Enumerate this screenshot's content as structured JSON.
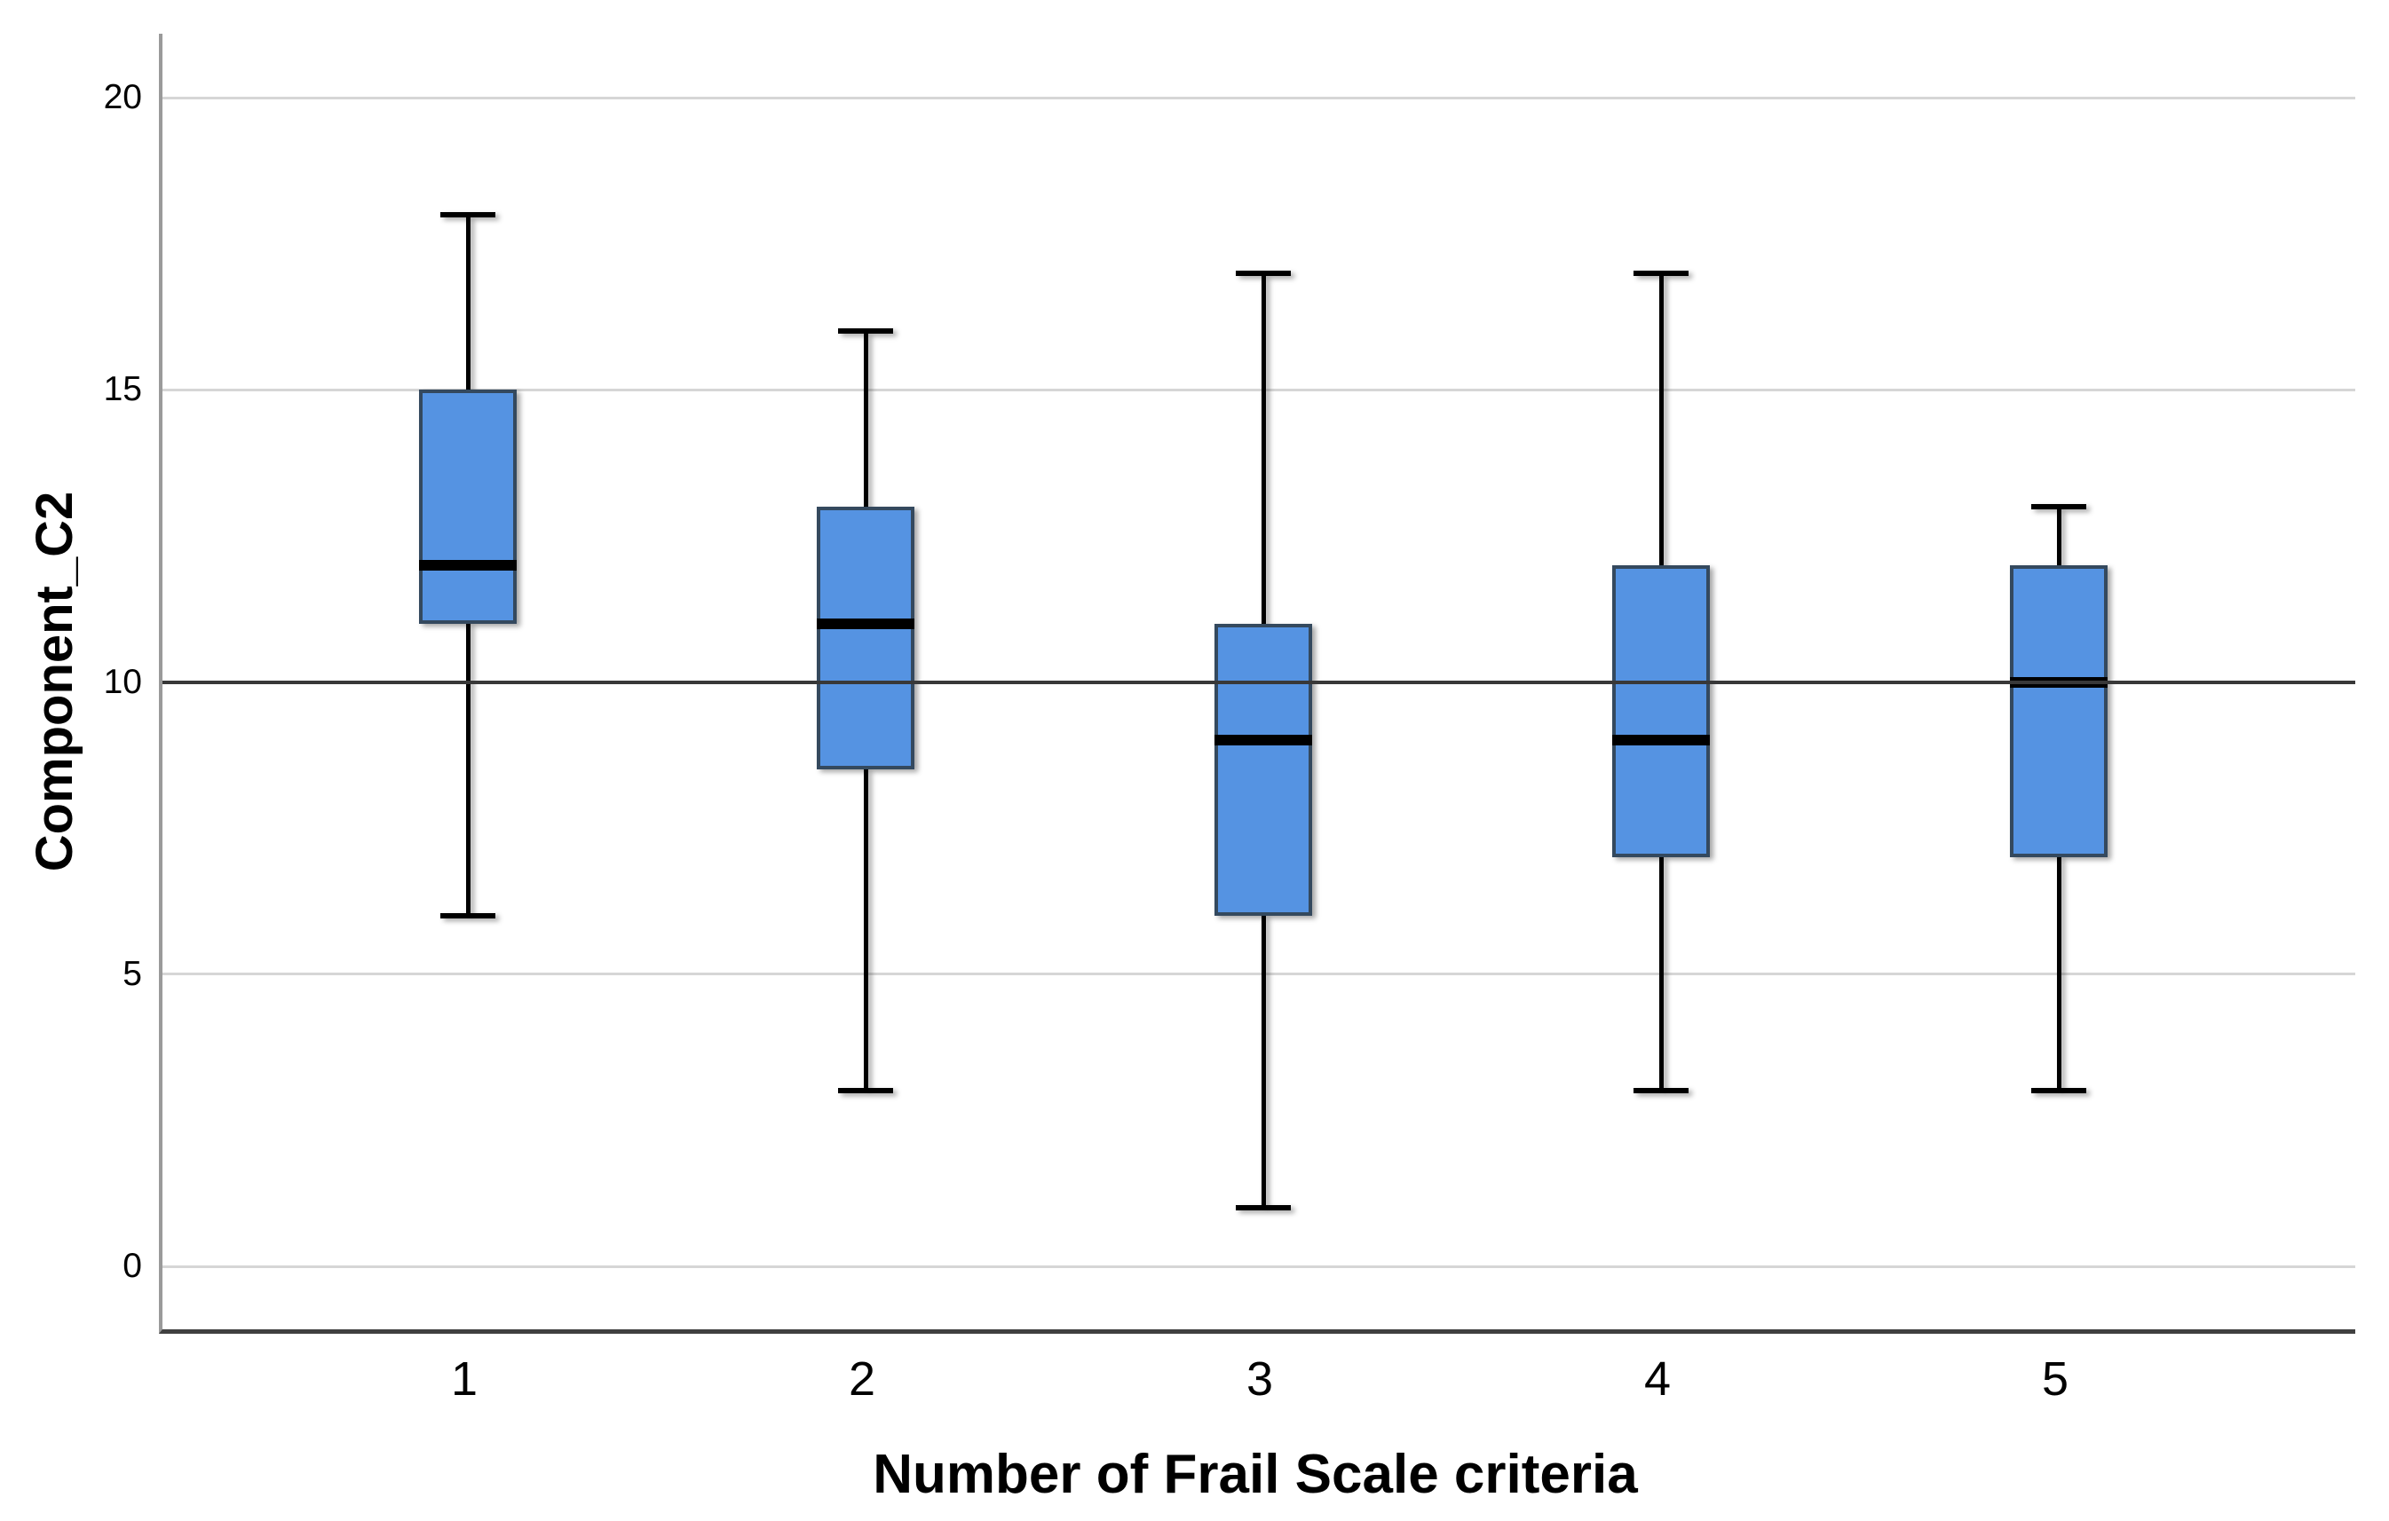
{
  "chart_data": {
    "type": "boxplot",
    "xlabel": "Number of Frail Scale criteria",
    "ylabel": "Component_C2",
    "categories": [
      "1",
      "2",
      "3",
      "4",
      "5"
    ],
    "yticks": [
      0,
      5,
      10,
      15,
      20
    ],
    "ylim": [
      -1,
      21
    ],
    "gridline_values": [
      0,
      5,
      15,
      20
    ],
    "reference_line_y": 10,
    "grid": true,
    "legend": "none",
    "series": [
      {
        "category": "1",
        "min": 6,
        "q1": 11,
        "median": 12,
        "q3": 15,
        "max": 18
      },
      {
        "category": "2",
        "min": 3,
        "q1": 8.5,
        "median": 11,
        "q3": 13,
        "max": 16
      },
      {
        "category": "3",
        "min": 1,
        "q1": 6,
        "median": 9,
        "q3": 11,
        "max": 17
      },
      {
        "category": "4",
        "min": 3,
        "q1": 7,
        "median": 9,
        "q3": 12,
        "max": 17
      },
      {
        "category": "5",
        "min": 3,
        "q1": 7,
        "median": 10,
        "q3": 12,
        "max": 13
      }
    ],
    "colors": {
      "box_fill": "#5593e2",
      "box_border": "#34495e",
      "median": "#000000",
      "whisker": "#000000",
      "gridline": "#d6d6d6",
      "reference_line": "#383838",
      "axis_left": "#9a9a9a",
      "axis_bottom": "#404040",
      "text": "#000000",
      "background": "#ffffff"
    }
  }
}
